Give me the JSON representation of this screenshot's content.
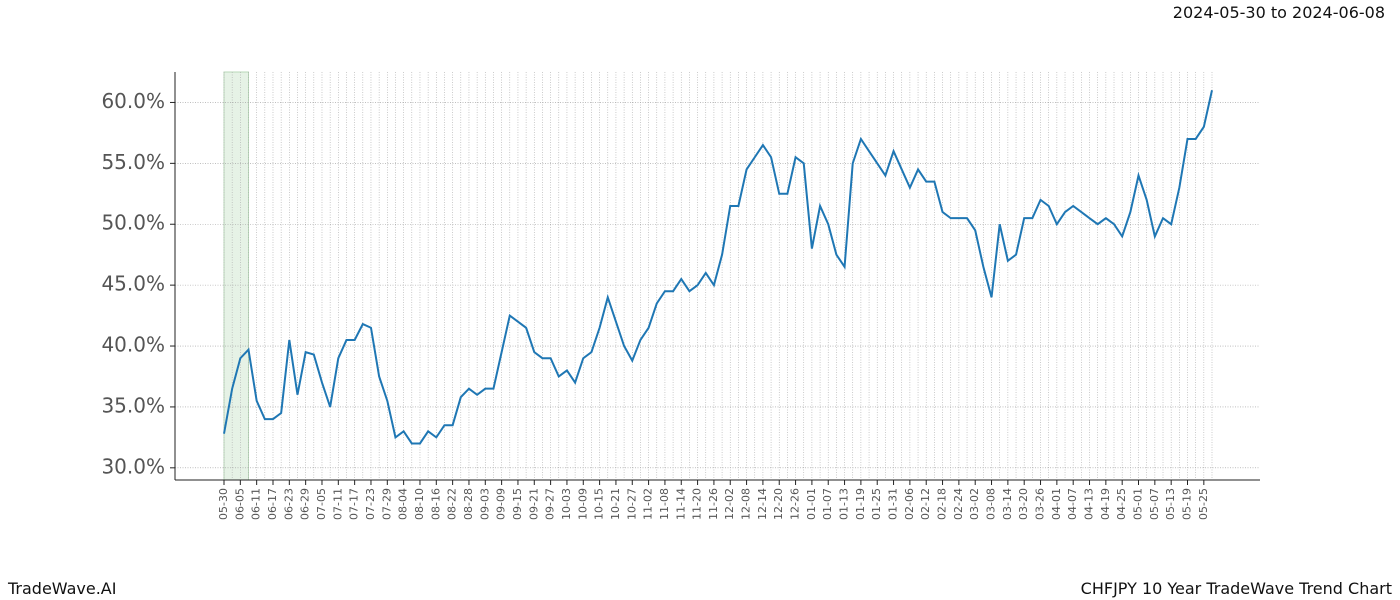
{
  "chart_data": {
    "type": "line",
    "title": "CHFJPY 10 Year TradeWave Trend Chart",
    "subtitle": "2024-05-30 to 2024-06-08",
    "brand": "TradeWave.AI",
    "x": [
      "05-30",
      null,
      "06-05",
      null,
      "06-11",
      null,
      "06-17",
      null,
      "06-23",
      null,
      "06-29",
      null,
      "07-05",
      null,
      "07-11",
      null,
      "07-17",
      null,
      "07-23",
      null,
      "07-29",
      null,
      "08-04",
      null,
      "08-10",
      null,
      "08-16",
      null,
      "08-22",
      null,
      "08-28",
      null,
      "09-03",
      null,
      "09-09",
      null,
      "09-15",
      null,
      "09-21",
      null,
      "09-27",
      null,
      "10-03",
      null,
      "10-09",
      null,
      "10-15",
      null,
      "10-21",
      null,
      "10-27",
      null,
      "11-02",
      null,
      "11-08",
      null,
      "11-14",
      null,
      "11-20",
      null,
      "11-26",
      null,
      "12-02",
      null,
      "12-08",
      null,
      "12-14",
      null,
      "12-20",
      null,
      "12-26",
      null,
      "01-01",
      null,
      "01-07",
      null,
      "01-13",
      null,
      "01-19",
      null,
      "01-25",
      null,
      "01-31",
      null,
      "02-06",
      null,
      "02-12",
      null,
      "02-18",
      null,
      "02-24",
      null,
      "03-02",
      null,
      "03-08",
      null,
      "03-14",
      null,
      "03-20",
      null,
      "03-26",
      null,
      "04-01",
      null,
      "04-07",
      null,
      "04-13",
      null,
      "04-19",
      null,
      "04-25",
      null,
      "05-01",
      null,
      "05-07",
      null,
      "05-13",
      null,
      "05-19",
      null,
      "05-25",
      null
    ],
    "series": [
      {
        "color": "#1f77b4",
        "values": [
          32.8,
          36.5,
          39.0,
          39.7,
          35.5,
          34.0,
          34.0,
          34.5,
          40.5,
          36.0,
          39.5,
          39.3,
          37.0,
          35.0,
          39.0,
          40.5,
          40.5,
          41.8,
          41.5,
          37.5,
          35.5,
          32.5,
          33.0,
          32.0,
          32.0,
          33.0,
          32.5,
          33.5,
          33.5,
          35.8,
          36.5,
          36.0,
          36.5,
          36.5,
          39.5,
          42.5,
          42.0,
          41.5,
          39.5,
          39.0,
          39.0,
          37.5,
          38.0,
          37.0,
          39.0,
          39.5,
          41.5,
          44.0,
          42.0,
          40.0,
          38.8,
          40.5,
          41.5,
          43.5,
          44.5,
          44.5,
          45.5,
          44.5,
          45.0,
          46.0,
          45.0,
          47.5,
          51.5,
          51.5,
          54.5,
          55.5,
          56.5,
          55.5,
          52.5,
          52.5,
          55.5,
          55.0,
          48.0,
          51.5,
          50.0,
          47.5,
          46.5,
          55.0,
          57.0,
          56.0,
          55.0,
          54.0,
          56.0,
          54.5,
          53.0,
          54.5,
          53.5,
          53.5,
          51.0,
          50.5,
          50.5,
          50.5,
          49.5,
          46.5,
          44.0,
          50.0,
          47.0,
          47.5,
          50.5,
          50.5,
          52.0,
          51.5,
          50.0,
          51.0,
          51.5,
          51.0,
          50.5,
          50.0,
          50.5,
          50.0,
          49.0,
          51.0,
          54.0,
          52.0,
          49.0,
          50.5,
          50.0,
          53.0,
          57.0,
          57.0,
          58.0,
          61.0
        ]
      }
    ],
    "highlight_span": [
      0,
      3
    ],
    "highlight_color": "#e6f2e6",
    "ylim": [
      29.0,
      62.5
    ],
    "yticks": [
      {
        "value": 30,
        "label": "30.0%"
      },
      {
        "value": 35,
        "label": "35.0%"
      },
      {
        "value": 40,
        "label": "40.0%"
      },
      {
        "value": 45,
        "label": "45.0%"
      },
      {
        "value": 50,
        "label": "50.0%"
      },
      {
        "value": 55,
        "label": "55.0%"
      },
      {
        "value": 60,
        "label": "60.0%"
      }
    ],
    "grid": true
  }
}
